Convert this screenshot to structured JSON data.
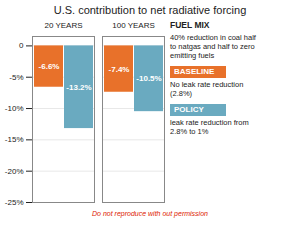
{
  "chart_data": {
    "type": "bar",
    "title": "U.S. contribution to net radiative forcing",
    "categories": [
      "20 YEARS",
      "100 YEARS"
    ],
    "series": [
      {
        "name": "BASELINE",
        "color": "#e8712a",
        "values": [
          -6.6,
          -7.4
        ],
        "value_labels": [
          "-6.6%",
          "-7.4%"
        ]
      },
      {
        "name": "POLICY",
        "color": "#6aaac0",
        "values": [
          -13.2,
          -10.5
        ],
        "value_labels": [
          "-13.2%",
          "-10.5%"
        ]
      }
    ],
    "ylim": [
      -25,
      1.5
    ],
    "yticks": [
      0,
      {
        "value": -5,
        "label": "-5%"
      },
      {
        "value": -10,
        "label": "-10%"
      },
      {
        "value": -15,
        "label": "-15%"
      },
      {
        "value": -20,
        "label": "-20%"
      },
      {
        "value": -25,
        "label": "-25%"
      }
    ],
    "grid": true,
    "data_labels": true,
    "legend": "right",
    "annotations": [
      "FUEL MIX",
      "40% reduction in coal half\nto natgas and half to zero\nemitting fuels",
      "No leak rate reduction\n(2.8%)",
      "leak rate reduction from\n2.8% to 1%",
      "Do not reproduce with out permission"
    ]
  }
}
